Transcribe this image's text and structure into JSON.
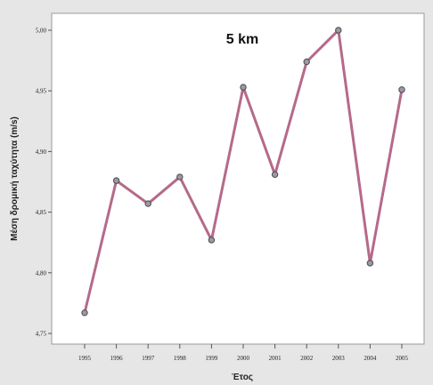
{
  "chart_data": {
    "type": "line",
    "title": "5 km",
    "xlabel": "Έτος",
    "ylabel": "Μέση δρομική ταχύτητα (m/s)",
    "categories": [
      "1995",
      "1996",
      "1997",
      "1998",
      "1999",
      "2000",
      "2001",
      "2002",
      "2003",
      "2004",
      "2005"
    ],
    "values": [
      4.767,
      4.876,
      4.857,
      4.879,
      4.827,
      4.953,
      4.881,
      4.974,
      5.0,
      4.808,
      4.951
    ],
    "ylim": [
      4.74,
      5.015
    ],
    "yticks": [
      4.75,
      4.8,
      4.85,
      4.9,
      4.95,
      5.0
    ],
    "ytick_labels": [
      "4,75",
      "4,80",
      "4,85",
      "4,90",
      "4,95",
      "5,00"
    ],
    "grid": false,
    "colors": {
      "line": "#b56a8a",
      "marker_fill": "#9a9aa0",
      "marker_stroke": "#4a4a55",
      "plot_bg": "#ffffff",
      "frame_bg": "#e6e6e6"
    }
  }
}
